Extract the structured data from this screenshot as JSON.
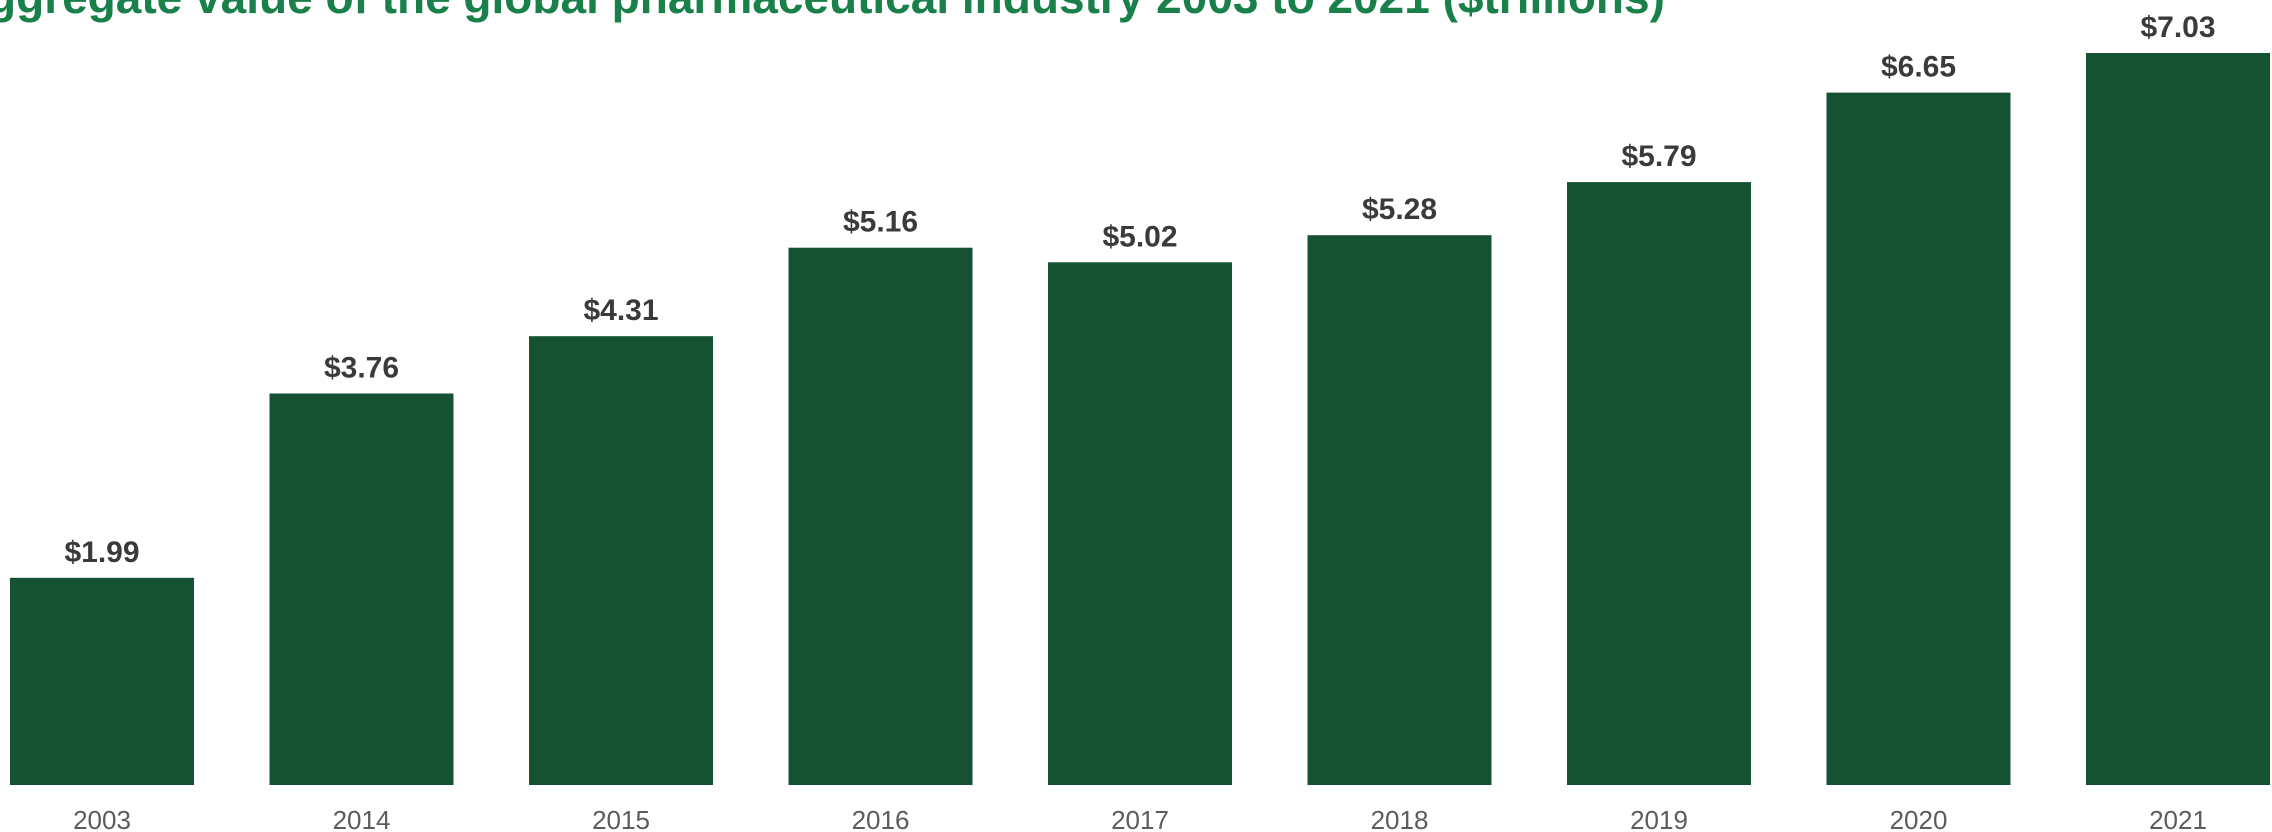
{
  "chart_data": {
    "type": "bar",
    "title": "ggregate value of the global pharmaceutical industry 2003 to 2021 ($trillions)",
    "xlabel": "",
    "ylabel": "",
    "categories": [
      "2003",
      "2014",
      "2015",
      "2016",
      "2017",
      "2018",
      "2019",
      "2020",
      "2021"
    ],
    "values": [
      1.99,
      3.76,
      4.31,
      5.16,
      5.02,
      5.28,
      5.79,
      6.65,
      7.03
    ],
    "value_labels": [
      "$1.99",
      "$3.76",
      "$4.31",
      "$5.16",
      "$5.02",
      "$5.28",
      "$5.79",
      "$6.65",
      "$7.03"
    ],
    "ylim": [
      0,
      7.03
    ],
    "grid": false,
    "legend": "none"
  },
  "colors": {
    "bar": "#145232",
    "title": "#19804a",
    "value_label": "#3a3a3a",
    "tick_label": "#5c5c5c"
  }
}
